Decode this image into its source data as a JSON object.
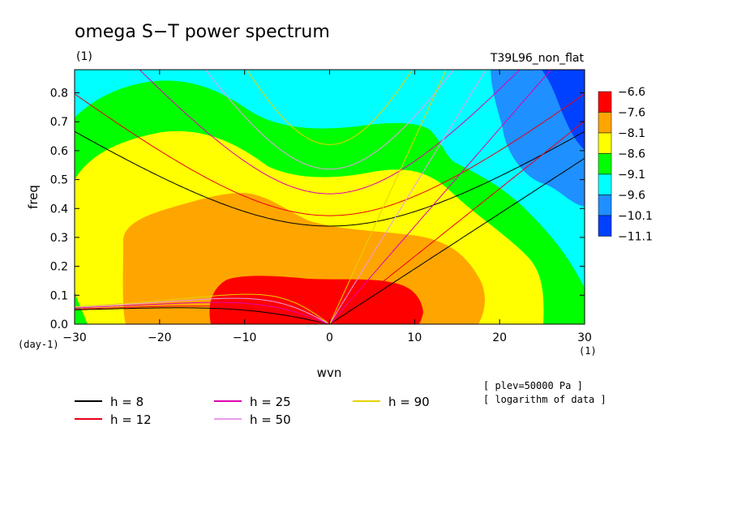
{
  "chart_data": {
    "type": "heatmap",
    "title": "omega S−T power spectrum",
    "unit_label": "(1)",
    "subtitle": "T39L96_non_flat",
    "xlabel": "wvn",
    "x_unit": "(1)",
    "ylabel": "freq",
    "y_unit": "(day-1)",
    "xlim": [
      -30,
      30
    ],
    "ylim": [
      0,
      0.88
    ],
    "x_ticks": [
      -30,
      -20,
      -10,
      0,
      10,
      20,
      30
    ],
    "x_tick_labels": [
      "−30",
      "−20",
      "−10",
      "0",
      "10",
      "20",
      "30"
    ],
    "y_ticks": [
      0,
      0.1,
      0.2,
      0.3,
      0.4,
      0.5,
      0.6,
      0.7,
      0.8
    ],
    "y_tick_labels": [
      "0.0",
      "0.1",
      "0.2",
      "0.3",
      "0.4",
      "0.5",
      "0.6",
      "0.7",
      "0.8"
    ],
    "colorbar": {
      "labels": [
        "−6.6",
        "−7.6",
        "−8.1",
        "−8.6",
        "−9.1",
        "−9.6",
        "−10.1",
        "−11.1"
      ],
      "colors": [
        "#ff0000",
        "#ffa500",
        "#ffff00",
        "#00ff00",
        "#00ffff",
        "#1e90ff",
        "#0040ff"
      ]
    },
    "dispersion_curves": [
      {
        "name": "h = 8",
        "h": 8,
        "color": "#000000"
      },
      {
        "name": "h = 12",
        "h": 12,
        "color": "#e8001a"
      },
      {
        "name": "h = 25",
        "h": 25,
        "color": "#e000b0"
      },
      {
        "name": "h = 50",
        "h": 50,
        "color": "#e89ce8"
      },
      {
        "name": "h = 90",
        "h": 90,
        "color": "#e6d200"
      }
    ],
    "notes": [
      "[ plev=50000 Pa ]",
      "[ logarithm of data ]"
    ]
  }
}
